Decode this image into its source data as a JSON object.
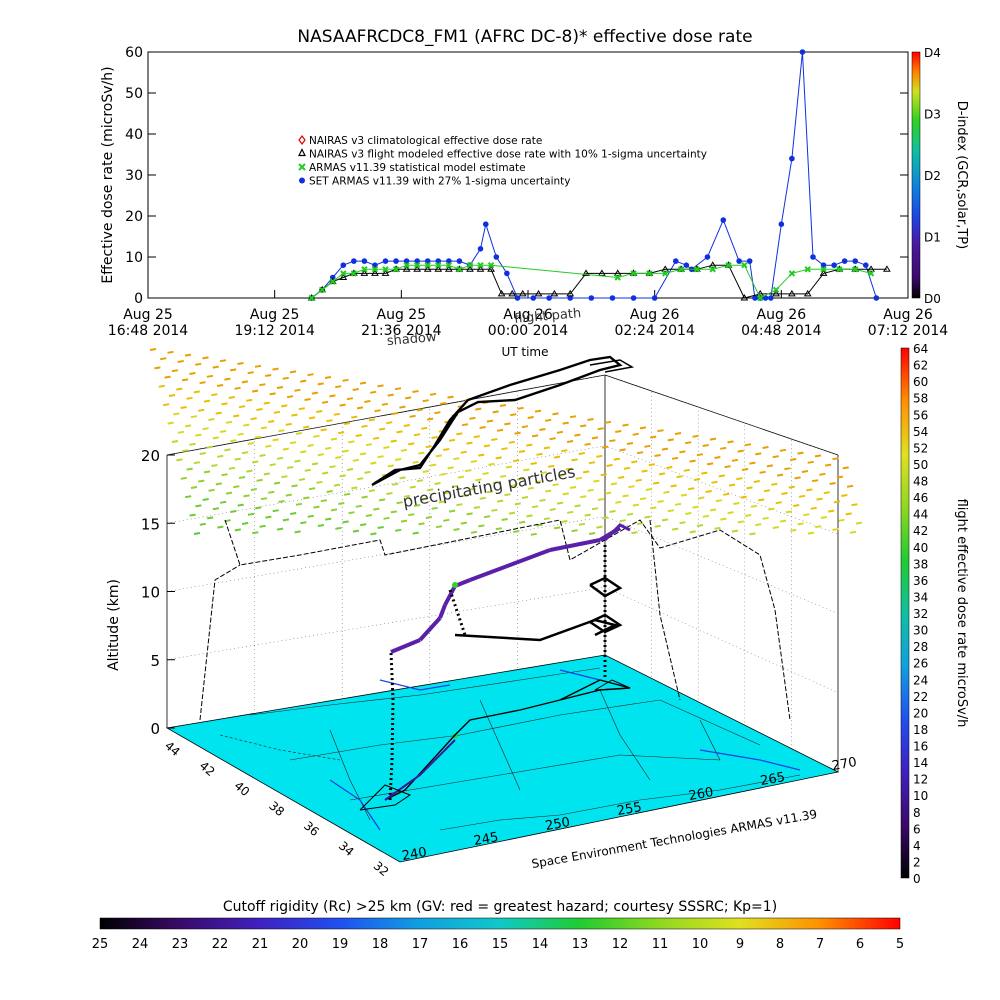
{
  "chart_data": [
    {
      "type": "scatter",
      "title": "NASAAFRCDC8_FM1 (AFRC DC-8)* effective dose rate",
      "ylabel": "Effective dose rate (microSv/h)",
      "xlabel": "UT time",
      "ylim": [
        0,
        60
      ],
      "y_ticks": [
        "0",
        "10",
        "20",
        "30",
        "40",
        "50",
        "60"
      ],
      "x_ticks": [
        {
          "l1": "Aug 25",
          "l2": "16:48 2014"
        },
        {
          "l1": "Aug 25",
          "l2": "19:12 2014"
        },
        {
          "l1": "Aug 25",
          "l2": "21:36 2014"
        },
        {
          "l1": "Aug 26",
          "l2": "00:00 2014"
        },
        {
          "l1": "Aug 26",
          "l2": "02:24 2014"
        },
        {
          "l1": "Aug 26",
          "l2": "04:48 2014"
        },
        {
          "l1": "Aug 26",
          "l2": "07:12 2014"
        }
      ],
      "x_hours": [
        0,
        2.4,
        4.8,
        7.2,
        9.6,
        12,
        14.4
      ],
      "legend": [
        {
          "name": "NAIRAS v3 climatological effective dose rate",
          "color": "#e00000",
          "marker": "diamond"
        },
        {
          "name": "NAIRAS v3 flight modeled effective dose rate with 10% 1-sigma uncertainty",
          "color": "#000000",
          "marker": "triangle"
        },
        {
          "name": "ARMAS v11.39 statistical model estimate",
          "color": "#22cc22",
          "marker": "x"
        },
        {
          "name": "SET ARMAS v11.39 with 27% 1-sigma uncertainty",
          "color": "#1030e0",
          "marker": "circle"
        }
      ],
      "legend_position": "upper-left",
      "colorbar": {
        "label": "D-index (GCR,solar,TP)",
        "ticks": [
          {
            "label": "D4",
            "v": 4
          },
          {
            "label": "D3",
            "v": 3
          },
          {
            "label": "D2",
            "v": 2
          },
          {
            "label": "D1",
            "v": 1
          },
          {
            "label": "D0",
            "v": 0
          }
        ]
      },
      "series": [
        {
          "name": "SET ARMAS v11.39 with 27% 1-sigma uncertainty",
          "x": [
            3.1,
            3.3,
            3.5,
            3.7,
            3.9,
            4.1,
            4.3,
            4.5,
            4.7,
            4.9,
            5.1,
            5.3,
            5.5,
            5.7,
            5.9,
            6.1,
            6.3,
            6.4,
            6.6,
            6.8,
            7.0,
            7.3,
            7.6,
            8.0,
            8.4,
            8.8,
            9.2,
            9.6,
            10.0,
            10.2,
            10.3,
            10.6,
            10.9,
            11.2,
            11.4,
            11.5,
            11.6,
            11.7,
            11.8,
            12.0,
            12.2,
            12.4,
            12.6,
            12.8,
            13.0,
            13.2,
            13.4,
            13.6,
            13.8
          ],
          "y": [
            0,
            2,
            5,
            8,
            9,
            9,
            8,
            9,
            9,
            9,
            9,
            9,
            9,
            9,
            9,
            8,
            12,
            18,
            10,
            6,
            0,
            0,
            0,
            0,
            0,
            0,
            0,
            0,
            9,
            8,
            7,
            10,
            19,
            9,
            9,
            0,
            0,
            0,
            0,
            18,
            34,
            60,
            10,
            8,
            8,
            9,
            9,
            8,
            0
          ],
          "color": "#1030e0"
        },
        {
          "name": "NAIRAS v3 flight modeled effective dose rate with 10% 1-sigma uncertainty",
          "x": [
            3.1,
            3.3,
            3.5,
            3.7,
            3.9,
            4.1,
            4.3,
            4.5,
            4.7,
            4.9,
            5.1,
            5.3,
            5.5,
            5.7,
            5.9,
            6.1,
            6.3,
            6.5,
            6.7,
            6.9,
            7.1,
            7.4,
            7.7,
            8.0,
            8.3,
            8.6,
            8.9,
            9.2,
            9.5,
            9.8,
            10.1,
            10.4,
            10.7,
            11.0,
            11.3,
            11.6,
            11.9,
            12.2,
            12.5,
            12.8,
            13.1,
            13.4,
            13.7,
            14.0
          ],
          "y": [
            0,
            2,
            4,
            5,
            6,
            6,
            6,
            6,
            7,
            7,
            7,
            7,
            7,
            7,
            7,
            7,
            7,
            7,
            1,
            1,
            1,
            1,
            1,
            1,
            6,
            6,
            6,
            6,
            6,
            7,
            7,
            7,
            8,
            8,
            0,
            1,
            1,
            1,
            1,
            6,
            7,
            7,
            7,
            7
          ],
          "color": "#000000"
        },
        {
          "name": "ARMAS v11.39 statistical model estimate",
          "x": [
            3.1,
            3.3,
            3.5,
            3.7,
            3.9,
            4.1,
            4.3,
            4.5,
            4.7,
            4.9,
            5.1,
            5.3,
            5.5,
            5.7,
            5.9,
            6.1,
            6.3,
            6.5,
            8.9,
            9.2,
            9.5,
            9.8,
            10.1,
            10.4,
            10.7,
            11.0,
            11.3,
            11.6,
            11.9,
            12.2,
            12.5,
            12.8,
            13.1,
            13.4,
            13.7
          ],
          "y": [
            0,
            2,
            4,
            6,
            6,
            7,
            7,
            7,
            7,
            8,
            8,
            8,
            8,
            8,
            7,
            8,
            8,
            8,
            5,
            6,
            6,
            6,
            7,
            7,
            7,
            8,
            8,
            0,
            2,
            6,
            7,
            7,
            7,
            7,
            6
          ],
          "color": "#22cc22"
        }
      ]
    },
    {
      "type": "surface3d",
      "title": "",
      "zlabel": "Altitude (km)",
      "z_ticks": [
        "0",
        "5",
        "10",
        "15",
        "20"
      ],
      "lat_ticks": [
        "44",
        "42",
        "40",
        "38",
        "36",
        "34",
        "32"
      ],
      "lon_ticks": [
        "240",
        "245",
        "250",
        "255",
        "260",
        "265",
        "270"
      ],
      "bottom_label": "Space Environment Technologies ARMAS v11.39",
      "annotations": [
        "precipitating particles",
        "flight path",
        "shadow"
      ],
      "colorbar_right": {
        "label": "flight effective dose rate microSv/h",
        "min": 0,
        "max": 64,
        "ticks": [
          "0",
          "2",
          "4",
          "6",
          "8",
          "10",
          "12",
          "14",
          "16",
          "18",
          "20",
          "22",
          "24",
          "26",
          "28",
          "30",
          "32",
          "34",
          "36",
          "38",
          "40",
          "42",
          "44",
          "46",
          "48",
          "50",
          "52",
          "54",
          "56",
          "58",
          "60",
          "62",
          "64"
        ]
      },
      "colorbar_bottom": {
        "label": "Cutoff rigidity (Rc) >25 km (GV: red = greatest hazard; courtesy SSSRC; Kp=1)",
        "ticks": [
          "25",
          "24",
          "23",
          "22",
          "21",
          "20",
          "19",
          "18",
          "17",
          "16",
          "15",
          "14",
          "13",
          "12",
          "11",
          "10",
          "9",
          "8",
          "7",
          "6",
          "5"
        ]
      }
    }
  ]
}
